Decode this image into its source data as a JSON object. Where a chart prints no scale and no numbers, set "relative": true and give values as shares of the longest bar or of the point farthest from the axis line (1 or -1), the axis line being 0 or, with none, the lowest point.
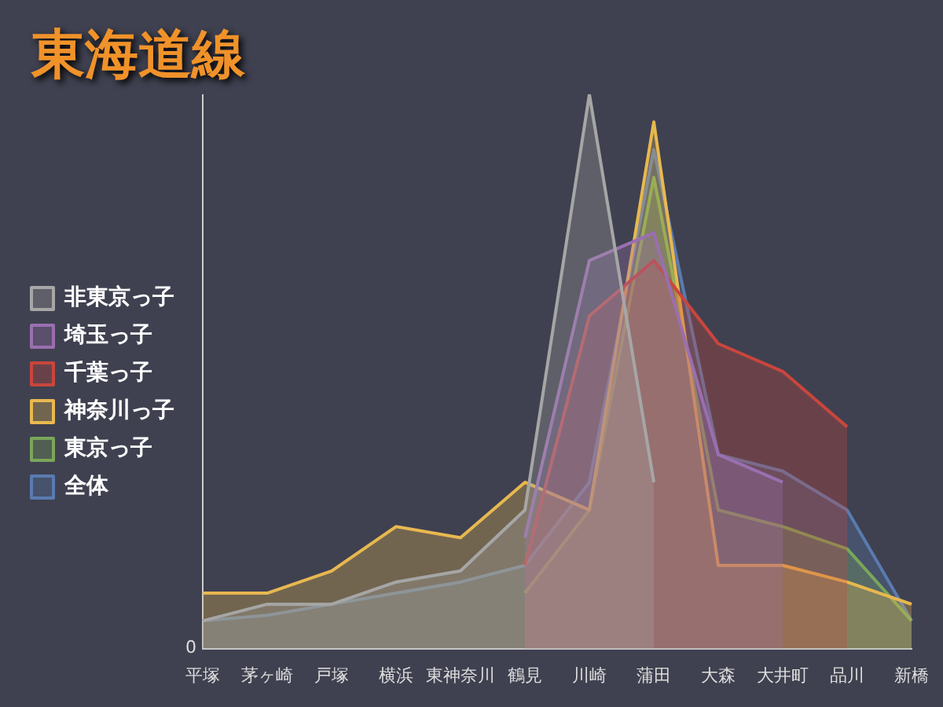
{
  "chart_data": {
    "type": "area",
    "title": "東海道線",
    "relative": true,
    "legend": "left",
    "annotations": [
      "0"
    ],
    "categories": [
      "平塚",
      "茅ヶ崎",
      "戸塚",
      "横浜",
      "東神奈川",
      "鶴見",
      "川崎",
      "蒲田",
      "大森",
      "大井町",
      "品川",
      "新橋"
    ],
    "series": [
      {
        "name": "非東京っ子",
        "color": "#a6a6a6",
        "values": [
          0.05,
          0.08,
          0.08,
          0.12,
          0.14,
          0.25,
          1.0,
          0.3,
          null,
          null,
          null,
          null
        ]
      },
      {
        "name": "埼玉っ子",
        "color": "#9a6fb0",
        "values": [
          null,
          null,
          null,
          null,
          null,
          0.2,
          0.7,
          0.75,
          0.35,
          0.3,
          null,
          null
        ]
      },
      {
        "name": "千葉っ子",
        "color": "#c9463d",
        "values": [
          null,
          null,
          null,
          null,
          null,
          0.15,
          0.6,
          0.7,
          0.55,
          0.5,
          0.4,
          null
        ]
      },
      {
        "name": "神奈川っ子",
        "color": "#e8b850",
        "values": [
          0.1,
          0.1,
          0.14,
          0.22,
          0.2,
          0.3,
          0.25,
          0.95,
          0.15,
          0.15,
          0.12,
          0.08
        ]
      },
      {
        "name": "東京っ子",
        "color": "#7aa65a",
        "values": [
          null,
          null,
          null,
          null,
          null,
          0.1,
          0.25,
          0.85,
          0.25,
          0.22,
          0.18,
          0.05
        ]
      },
      {
        "name": "全体",
        "color": "#5a7bb0",
        "values": [
          0.05,
          0.06,
          0.08,
          0.1,
          0.12,
          0.15,
          0.3,
          0.9,
          0.35,
          0.32,
          0.25,
          0.05
        ]
      }
    ]
  }
}
